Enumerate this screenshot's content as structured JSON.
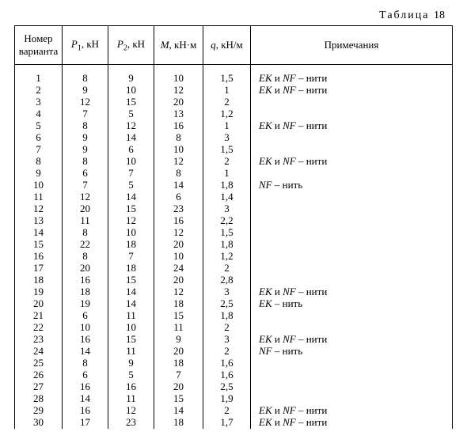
{
  "caption_word": "Таблица",
  "caption_num": "18",
  "headers": {
    "variant": "Номер варианта",
    "p1_sym": "P",
    "p1_sub": "1",
    "unit_kn": ", кН",
    "p2_sym": "P",
    "p2_sub": "2",
    "m_sym": "M",
    "unit_knm": ", кН·м",
    "q_sym": "q",
    "unit_knpm": ", кН/м",
    "notes": "Примечания"
  },
  "note_tokens": {
    "ek": "EK",
    "and": " и ",
    "nf": "NF",
    "dash_threads": " – нити",
    "dash_thread": " – нить"
  },
  "rows": [
    {
      "n": "1",
      "p1": "8",
      "p2": "9",
      "m": "10",
      "q": "1,5",
      "note": "both"
    },
    {
      "n": "2",
      "p1": "9",
      "p2": "10",
      "m": "12",
      "q": "1",
      "note": "both"
    },
    {
      "n": "3",
      "p1": "12",
      "p2": "15",
      "m": "20",
      "q": "2",
      "note": ""
    },
    {
      "n": "4",
      "p1": "7",
      "p2": "5",
      "m": "13",
      "q": "1,2",
      "note": ""
    },
    {
      "n": "5",
      "p1": "8",
      "p2": "12",
      "m": "16",
      "q": "1",
      "note": "both"
    },
    {
      "n": "6",
      "p1": "9",
      "p2": "14",
      "m": "8",
      "q": "3",
      "note": ""
    },
    {
      "n": "7",
      "p1": "9",
      "p2": "6",
      "m": "10",
      "q": "1,5",
      "note": ""
    },
    {
      "n": "8",
      "p1": "8",
      "p2": "10",
      "m": "12",
      "q": "2",
      "note": "both"
    },
    {
      "n": "9",
      "p1": "6",
      "p2": "7",
      "m": "8",
      "q": "1",
      "note": ""
    },
    {
      "n": "10",
      "p1": "7",
      "p2": "5",
      "m": "14",
      "q": "1,8",
      "note": "nf"
    },
    {
      "n": "11",
      "p1": "12",
      "p2": "14",
      "m": "6",
      "q": "1,4",
      "note": ""
    },
    {
      "n": "12",
      "p1": "20",
      "p2": "15",
      "m": "23",
      "q": "3",
      "note": ""
    },
    {
      "n": "13",
      "p1": "11",
      "p2": "12",
      "m": "16",
      "q": "2,2",
      "note": ""
    },
    {
      "n": "14",
      "p1": "8",
      "p2": "10",
      "m": "12",
      "q": "1,5",
      "note": ""
    },
    {
      "n": "15",
      "p1": "22",
      "p2": "18",
      "m": "20",
      "q": "1,8",
      "note": ""
    },
    {
      "n": "16",
      "p1": "8",
      "p2": "7",
      "m": "10",
      "q": "1,2",
      "note": ""
    },
    {
      "n": "17",
      "p1": "20",
      "p2": "18",
      "m": "24",
      "q": "2",
      "note": ""
    },
    {
      "n": "18",
      "p1": "16",
      "p2": "15",
      "m": "20",
      "q": "2,8",
      "note": ""
    },
    {
      "n": "19",
      "p1": "18",
      "p2": "14",
      "m": "12",
      "q": "3",
      "note": "both"
    },
    {
      "n": "20",
      "p1": "19",
      "p2": "14",
      "m": "18",
      "q": "2,5",
      "note": "ek"
    },
    {
      "n": "21",
      "p1": "6",
      "p2": "11",
      "m": "15",
      "q": "1,8",
      "note": ""
    },
    {
      "n": "22",
      "p1": "10",
      "p2": "10",
      "m": "11",
      "q": "2",
      "note": ""
    },
    {
      "n": "23",
      "p1": "16",
      "p2": "15",
      "m": "9",
      "q": "3",
      "note": "both"
    },
    {
      "n": "24",
      "p1": "14",
      "p2": "11",
      "m": "20",
      "q": "2",
      "note": "nf"
    },
    {
      "n": "25",
      "p1": "8",
      "p2": "9",
      "m": "18",
      "q": "1,6",
      "note": ""
    },
    {
      "n": "26",
      "p1": "6",
      "p2": "5",
      "m": "7",
      "q": "1,6",
      "note": ""
    },
    {
      "n": "27",
      "p1": "16",
      "p2": "16",
      "m": "20",
      "q": "2,5",
      "note": ""
    },
    {
      "n": "28",
      "p1": "14",
      "p2": "11",
      "m": "15",
      "q": "1,9",
      "note": ""
    },
    {
      "n": "29",
      "p1": "16",
      "p2": "12",
      "m": "14",
      "q": "2",
      "note": "both"
    },
    {
      "n": "30",
      "p1": "17",
      "p2": "23",
      "m": "18",
      "q": "1,7",
      "note": "both"
    }
  ]
}
